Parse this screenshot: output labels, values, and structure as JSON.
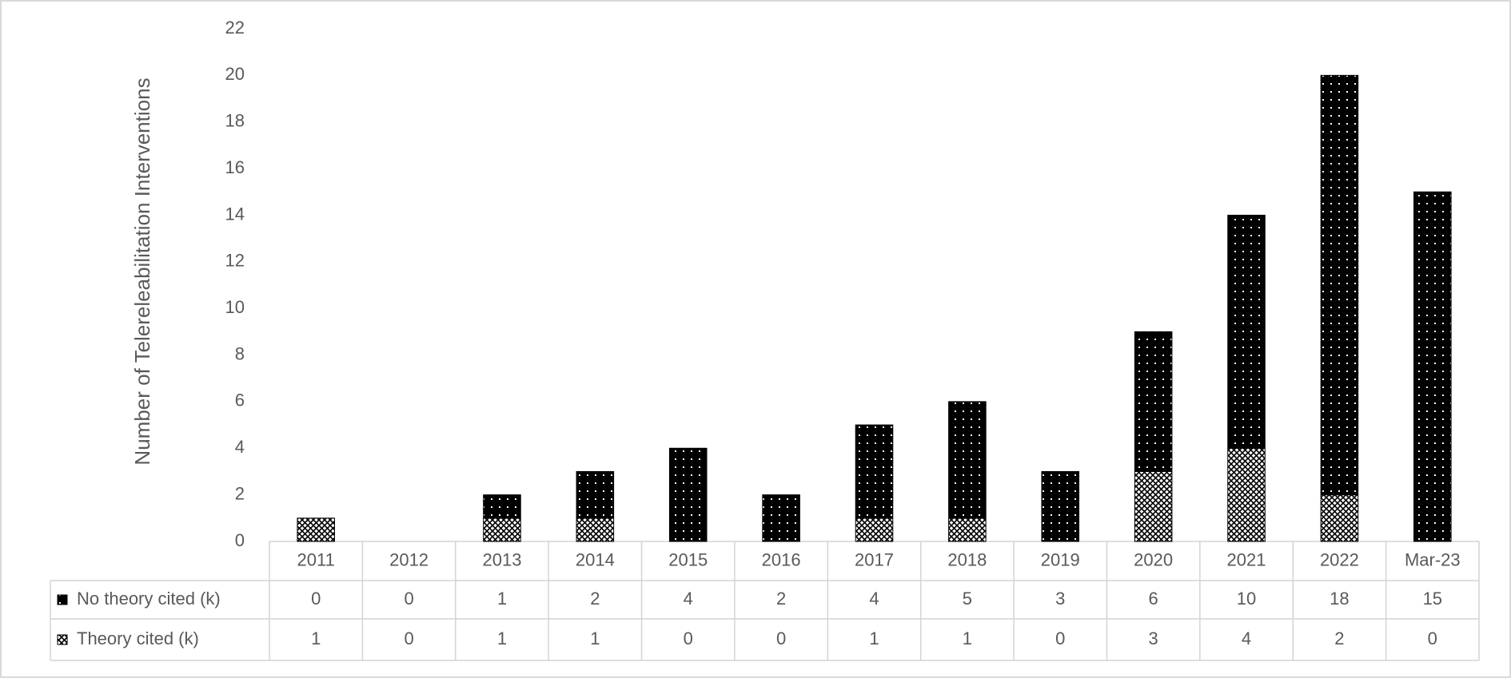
{
  "chart_data": {
    "type": "stacked_bar",
    "y_label": "Number of Telereleabilitation Interventions",
    "categories": [
      "2011",
      "2012",
      "2013",
      "2014",
      "2015",
      "2016",
      "2017",
      "2018",
      "2019",
      "2020",
      "2021",
      "2022",
      "Mar-23"
    ],
    "series": [
      {
        "name": "Theory cited (k)",
        "color": "#000000",
        "values": [
          1,
          0,
          1,
          1,
          0,
          0,
          1,
          1,
          0,
          3,
          4,
          2,
          0
        ]
      },
      {
        "name": "No theory cited (k)",
        "color": "#000000",
        "values": [
          0,
          0,
          1,
          2,
          4,
          2,
          4,
          5,
          3,
          6,
          10,
          18,
          15
        ]
      }
    ],
    "ylim": [
      0,
      22
    ],
    "yticks": [
      0,
      2,
      4,
      6,
      8,
      10,
      12,
      14,
      16,
      18,
      20,
      22
    ]
  }
}
